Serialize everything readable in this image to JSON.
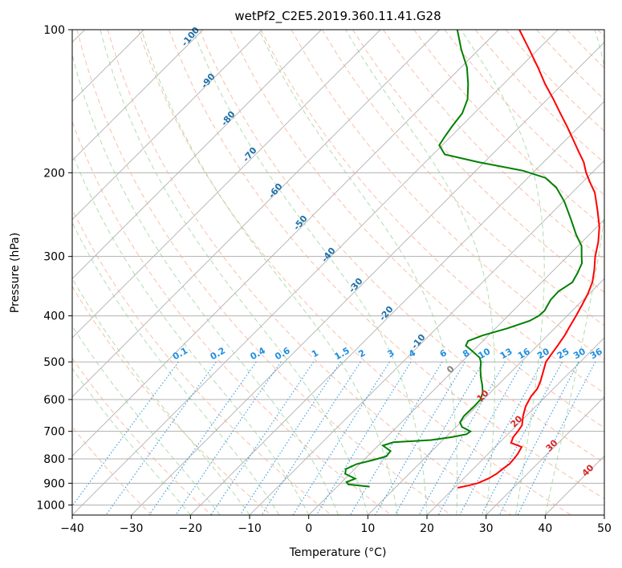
{
  "chart_data": {
    "type": "line",
    "title": "wetPf2_C2E5.2019.360.11.41.G28",
    "xlabel": "Temperature (°C)",
    "ylabel": "Pressure (hPa)",
    "xlim": [
      -40,
      50
    ],
    "ylim": [
      1050,
      100
    ],
    "y_scale": "log",
    "grid": true,
    "x_ticks": [
      -40,
      -30,
      -20,
      -10,
      0,
      10,
      20,
      30,
      40,
      50
    ],
    "y_ticks": [
      100,
      200,
      300,
      400,
      500,
      600,
      700,
      800,
      900,
      1000
    ],
    "colors": {
      "temperature": "#ff0000",
      "dewpoint": "#008000",
      "isotherm": "#b0b0b0",
      "dry_adiabat": "#f7a98c",
      "moist_adiabat": "#8fcf8f",
      "mixing_ratio": "#1f8fe0",
      "wetbulb_labels": "#1f6fa8",
      "theta_labels": "#d62728",
      "zero_label": "#808080"
    },
    "series": [
      {
        "name": "",
        "key": "temperature",
        "points": [
          [
            920,
            20.6
          ],
          [
            910,
            22.0
          ],
          [
            900,
            23.2
          ],
          [
            880,
            24.2
          ],
          [
            860,
            24.8
          ],
          [
            840,
            25.0
          ],
          [
            820,
            25.3
          ],
          [
            800,
            25.2
          ],
          [
            780,
            25.0
          ],
          [
            755,
            24.5
          ],
          [
            740,
            22.0
          ],
          [
            720,
            21.4
          ],
          [
            700,
            21.2
          ],
          [
            680,
            20.9
          ],
          [
            650,
            19.5
          ],
          [
            620,
            18.3
          ],
          [
            590,
            17.5
          ],
          [
            570,
            17.3
          ],
          [
            550,
            16.6
          ],
          [
            520,
            15.2
          ],
          [
            500,
            14.2
          ],
          [
            480,
            13.8
          ],
          [
            460,
            13.4
          ],
          [
            440,
            12.9
          ],
          [
            420,
            12.2
          ],
          [
            400,
            11.5
          ],
          [
            380,
            10.7
          ],
          [
            360,
            9.8
          ],
          [
            340,
            8.6
          ],
          [
            320,
            6.8
          ],
          [
            300,
            4.7
          ],
          [
            280,
            2.8
          ],
          [
            260,
            0.4
          ],
          [
            240,
            -2.7
          ],
          [
            220,
            -6.2
          ],
          [
            210,
            -8.6
          ],
          [
            200,
            -11.0
          ],
          [
            190,
            -13.2
          ],
          [
            180,
            -16.0
          ],
          [
            170,
            -18.9
          ],
          [
            160,
            -22.0
          ],
          [
            150,
            -25.4
          ],
          [
            140,
            -29.0
          ],
          [
            130,
            -33.0
          ],
          [
            120,
            -37.0
          ],
          [
            110,
            -41.5
          ],
          [
            100,
            -46.5
          ]
        ]
      },
      {
        "name": "",
        "key": "dewpoint",
        "points": [
          [
            915,
            5.5
          ],
          [
            905,
            1.5
          ],
          [
            895,
            0.8
          ],
          [
            880,
            1.7
          ],
          [
            860,
            -0.8
          ],
          [
            840,
            -1.5
          ],
          [
            820,
            -0.5
          ],
          [
            805,
            1.5
          ],
          [
            790,
            3.2
          ],
          [
            770,
            3.0
          ],
          [
            750,
            0.8
          ],
          [
            738,
            2.0
          ],
          [
            730,
            8.0
          ],
          [
            720,
            11.0
          ],
          [
            710,
            13.0
          ],
          [
            700,
            13.2
          ],
          [
            685,
            11.0
          ],
          [
            670,
            9.9
          ],
          [
            650,
            9.5
          ],
          [
            620,
            9.6
          ],
          [
            600,
            9.5
          ],
          [
            580,
            8.7
          ],
          [
            560,
            7.4
          ],
          [
            540,
            5.9
          ],
          [
            520,
            4.5
          ],
          [
            500,
            3.2
          ],
          [
            490,
            2.3
          ],
          [
            475,
            0.0
          ],
          [
            462,
            -2.1
          ],
          [
            452,
            -2.5
          ],
          [
            440,
            -1.0
          ],
          [
            425,
            2.0
          ],
          [
            410,
            4.5
          ],
          [
            400,
            5.2
          ],
          [
            390,
            5.3
          ],
          [
            370,
            4.5
          ],
          [
            355,
            4.4
          ],
          [
            340,
            5.2
          ],
          [
            325,
            4.5
          ],
          [
            310,
            3.6
          ],
          [
            300,
            2.4
          ],
          [
            285,
            0.6
          ],
          [
            270,
            -2.2
          ],
          [
            250,
            -5.8
          ],
          [
            230,
            -9.8
          ],
          [
            215,
            -13.5
          ],
          [
            205,
            -17.0
          ],
          [
            198,
            -22.0
          ],
          [
            190,
            -31.0
          ],
          [
            183,
            -38.0
          ],
          [
            175,
            -40.5
          ],
          [
            168,
            -41.0
          ],
          [
            160,
            -41.5
          ],
          [
            150,
            -42.0
          ],
          [
            140,
            -43.5
          ],
          [
            130,
            -46.0
          ],
          [
            120,
            -49.0
          ],
          [
            110,
            -53.0
          ],
          [
            100,
            -57.0
          ]
        ]
      }
    ],
    "wetbulb_labels": [
      "-100",
      "-90",
      "-80",
      "-70",
      "-60",
      "-50",
      "-40",
      "-30",
      "-20",
      "-10"
    ],
    "mixing_ratio_labels": [
      "0.1",
      "0.2",
      "0.4",
      "0.6",
      "1",
      "1.5",
      "2",
      "3",
      "4",
      "6",
      "8",
      "10",
      "13",
      "16",
      "20",
      "25",
      "30",
      "36"
    ],
    "theta_labels": [
      "0",
      "10",
      "20",
      "30",
      "40"
    ]
  }
}
